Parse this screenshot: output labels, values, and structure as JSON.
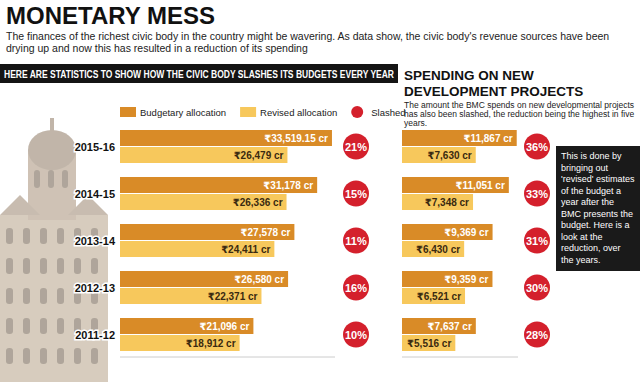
{
  "header": {
    "title": "MONETARY MESS",
    "subtitle": "The finances of the richest civic body in the country might be wavering. As data show, the civic body's revenue sources have been drying up and now this has resulted in a reduction of its spending"
  },
  "note": "This is done by bringing out 'revised' estimates of the budget a year after the BMC presents the budget. Here is a look at the reduction, over the years.",
  "chart_data": [
    {
      "type": "bar",
      "orientation": "horizontal",
      "title": "HERE ARE STATISTICS TO SHOW HOW THE CIVIC BODY SLASHES ITS BUDGETS EVERY YEAR",
      "categories": [
        "2015-16",
        "2014-15",
        "2013-14",
        "2012-13",
        "2011-12"
      ],
      "xlim": [
        0,
        34000
      ],
      "tick_labels": false,
      "data_labels": true,
      "legend": "top",
      "series": [
        {
          "name": "Budgetary allocation",
          "color": "#d98b27",
          "values": [
            33519.15,
            31178,
            27578,
            26580,
            21096
          ],
          "value_labels": [
            "₹33,519.15 cr",
            "₹31,178 cr",
            "₹27,578 cr",
            "₹26,580 cr",
            "₹21,096 cr"
          ]
        },
        {
          "name": "Revised allocation",
          "color": "#f7c85c",
          "values": [
            26479,
            26336,
            24411,
            22371,
            18912
          ],
          "value_labels": [
            "₹26,479 cr",
            "₹26,336 cr",
            "₹24,411 cr",
            "₹22,371 cr",
            "₹18,912 cr"
          ]
        },
        {
          "name": "Slashed",
          "type": "label",
          "marker": "circle",
          "color": "#d4202c",
          "values": [
            21,
            15,
            11,
            16,
            10
          ],
          "value_labels": [
            "21%",
            "15%",
            "11%",
            "16%",
            "10%"
          ]
        }
      ]
    },
    {
      "type": "bar",
      "orientation": "horizontal",
      "title": "SPENDING ON NEW DEVELOPMENT PROJECTS",
      "subtitle": "The amount the BMC spends on new developmental projects has also been slashed, the reduction being the highest in five years.",
      "categories": [
        null,
        null,
        null,
        null,
        null
      ],
      "xlim": [
        0,
        12000
      ],
      "tick_labels": false,
      "data_labels": true,
      "series": [
        {
          "color": "#d98b27",
          "values": [
            11867,
            11051,
            9369,
            9359,
            7637
          ],
          "value_labels": [
            "₹11,867 cr",
            "₹11,051 cr",
            "₹9,369 cr",
            "₹9,359 cr",
            "₹7,637 cr"
          ]
        },
        {
          "color": "#f7c85c",
          "values": [
            7630,
            7348,
            6430,
            6521,
            5516
          ],
          "value_labels": [
            "₹7,630 cr",
            "₹7,348 cr",
            "₹6,430 cr",
            "₹6,521 cr",
            "₹5,516 cr"
          ]
        },
        {
          "type": "label",
          "marker": "circle",
          "color": "#d4202c",
          "values": [
            36,
            33,
            31,
            30,
            28
          ],
          "value_labels": [
            "36%",
            "33%",
            "31%",
            "30%",
            "28%"
          ]
        }
      ]
    }
  ]
}
